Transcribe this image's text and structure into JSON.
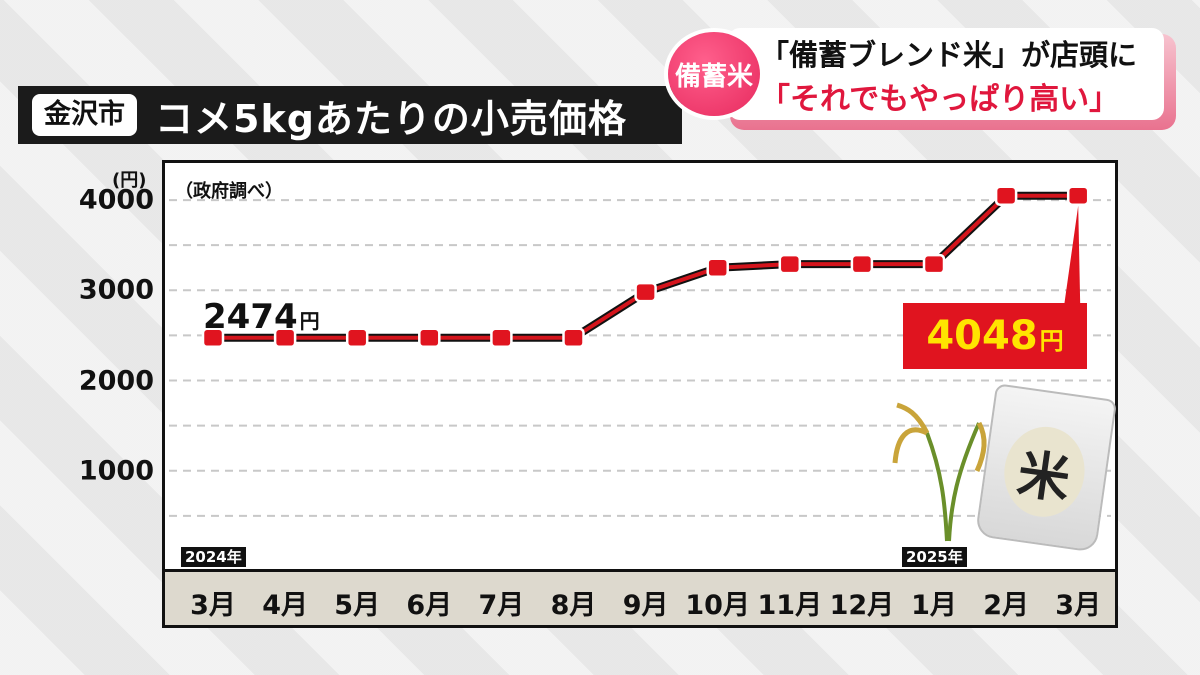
{
  "title_bar": {
    "city": "金沢市",
    "title": "コメ5kgあたりの小売価格"
  },
  "headline": {
    "badge": "備蓄米",
    "line1": "「備蓄ブレンド米」が店頭に",
    "line2": "「それでもやっぱり高い」"
  },
  "chart_data": {
    "type": "line",
    "unit": "(円)",
    "source": "（政府調べ）",
    "categories": [
      "3月",
      "4月",
      "5月",
      "6月",
      "7月",
      "8月",
      "9月",
      "10月",
      "11月",
      "12月",
      "1月",
      "2月",
      "3月"
    ],
    "values": [
      2474,
      2474,
      2474,
      2474,
      2474,
      2474,
      2980,
      3250,
      3290,
      3290,
      3290,
      4048,
      4048
    ],
    "year_labels": [
      {
        "index": 0,
        "text": "2024年"
      },
      {
        "index": 10,
        "text": "2025年"
      }
    ],
    "yticks": [
      1000,
      2000,
      3000,
      4000
    ],
    "ylim": [
      0,
      4300
    ],
    "grid": true,
    "start_annotation": {
      "value": "2474",
      "unit": "円"
    },
    "end_annotation": {
      "value": "4048",
      "unit": "円"
    },
    "line_color": "#d4141c",
    "marker_color": "#e0141f"
  },
  "illustration": {
    "bag_label": "米"
  }
}
